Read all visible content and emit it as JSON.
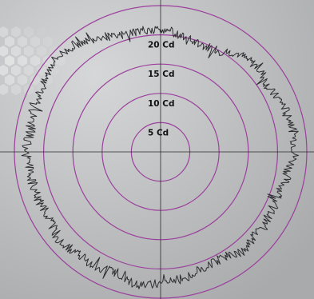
{
  "chart_data": {
    "type": "polar-line",
    "unit": "Cd",
    "r_max": 25,
    "rings": [
      5,
      10,
      15,
      20,
      25
    ],
    "ring_labels": [
      "5 Cd",
      "10 Cd",
      "15 Cd",
      "20 Cd"
    ],
    "grid": true,
    "axis_crosshair": true,
    "series": [
      {
        "angle_deg": [
          0,
          10,
          20,
          30,
          40,
          50,
          60,
          70,
          80,
          90,
          100,
          110,
          120,
          130,
          140,
          150,
          160,
          170,
          180,
          190,
          200,
          210,
          220,
          230,
          240,
          250,
          260,
          270,
          280,
          290,
          300,
          310,
          320,
          330,
          340,
          350
        ],
        "values": [
          21,
          20,
          19.5,
          20,
          21.5,
          22,
          21.5,
          22.5,
          23,
          23,
          22,
          21.5,
          21.5,
          21.5,
          22,
          21,
          21,
          22,
          22.5,
          23,
          22,
          22.5,
          22.5,
          23,
          22,
          22.5,
          22.5,
          23,
          22.5,
          23,
          23,
          24,
          23.5,
          22.5,
          21,
          21
        ]
      }
    ],
    "colors": {
      "background": "#bfc0c1",
      "ring": "#9b3f9d",
      "axis": "#2a2a2a",
      "curve": "#2e2e33",
      "label": "#111111"
    }
  }
}
